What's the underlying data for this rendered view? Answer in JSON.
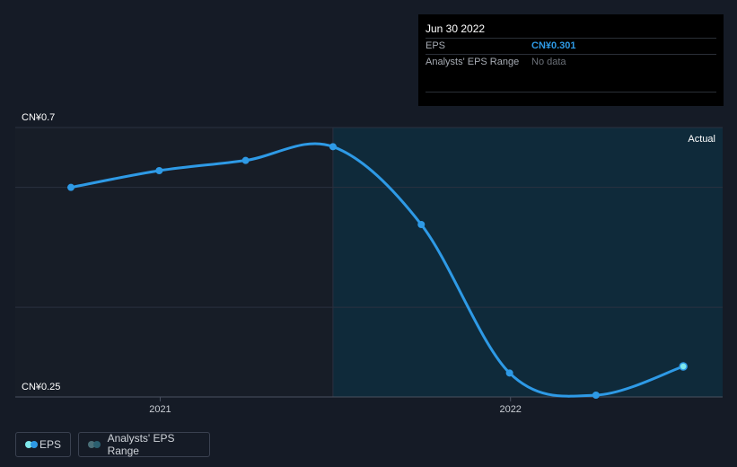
{
  "tooltip": {
    "date": "Jun 30 2022",
    "rows": [
      {
        "label": "EPS",
        "value": "CN¥0.301"
      },
      {
        "label": "Analysts' EPS Range",
        "value": "No data"
      }
    ]
  },
  "chart_data": {
    "type": "line",
    "x": [
      "2020-09-30",
      "2020-12-31",
      "2021-03-31",
      "2021-06-30",
      "2021-09-30",
      "2021-12-31",
      "2022-03-31",
      "2022-06-30"
    ],
    "series": [
      {
        "name": "EPS",
        "values": [
          0.6,
          0.628,
          0.645,
          0.668,
          0.538,
          0.29,
          0.253,
          0.301
        ]
      }
    ],
    "ylim": [
      0.25,
      0.7
    ],
    "y_tick_labels": [
      "CN¥0.7",
      "CN¥0.25"
    ],
    "x_tick_labels": [
      "2021",
      "2022"
    ],
    "x_tick_dates": [
      "2021-01-01",
      "2022-01-01"
    ],
    "region_label": "Actual",
    "forecast_start": "2021-06-30",
    "grid": true,
    "colors": {
      "line": "#2e9ae6",
      "forecast_band": "#0f2a3a",
      "background": "#151b26"
    }
  },
  "legend": [
    {
      "label": "EPS",
      "colors": [
        "#2e9ae6",
        "#7fe8ec"
      ]
    },
    {
      "label": "Analysts' EPS Range",
      "colors": [
        "#2b5f6f",
        "#4a6f78"
      ]
    }
  ]
}
